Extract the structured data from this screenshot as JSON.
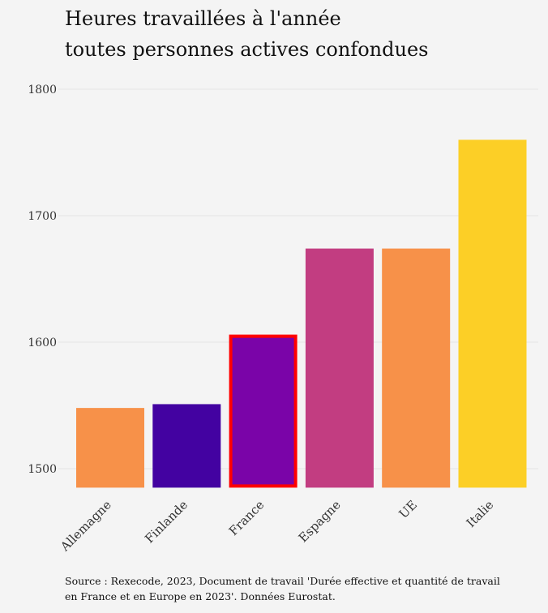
{
  "title": {
    "line1": "Heures travaillées à l'année",
    "line2": "toutes personnes actives confondues"
  },
  "caption": {
    "line1": "Source : Rexecode, 2023, Document de travail 'Durée effective et quantité de travail",
    "line2": "en France et en Europe en 2023'. Données Eurostat."
  },
  "chart_data": {
    "type": "bar",
    "categories": [
      "Allemagne",
      "Finlande",
      "France",
      "Espagne",
      "UE",
      "Italie"
    ],
    "values": [
      1548,
      1551,
      1606,
      1674,
      1674,
      1760
    ],
    "colors": [
      "#f79149",
      "#4302a1",
      "#7a04a8",
      "#c23d81",
      "#f79149",
      "#fccf26"
    ],
    "highlight": {
      "category": "France",
      "outline_color": "#ff0000"
    },
    "ylim": [
      1485,
      1800
    ],
    "yticks": [
      1500,
      1600,
      1700,
      1800
    ],
    "grid": true,
    "xlabel": "",
    "ylabel": ""
  }
}
